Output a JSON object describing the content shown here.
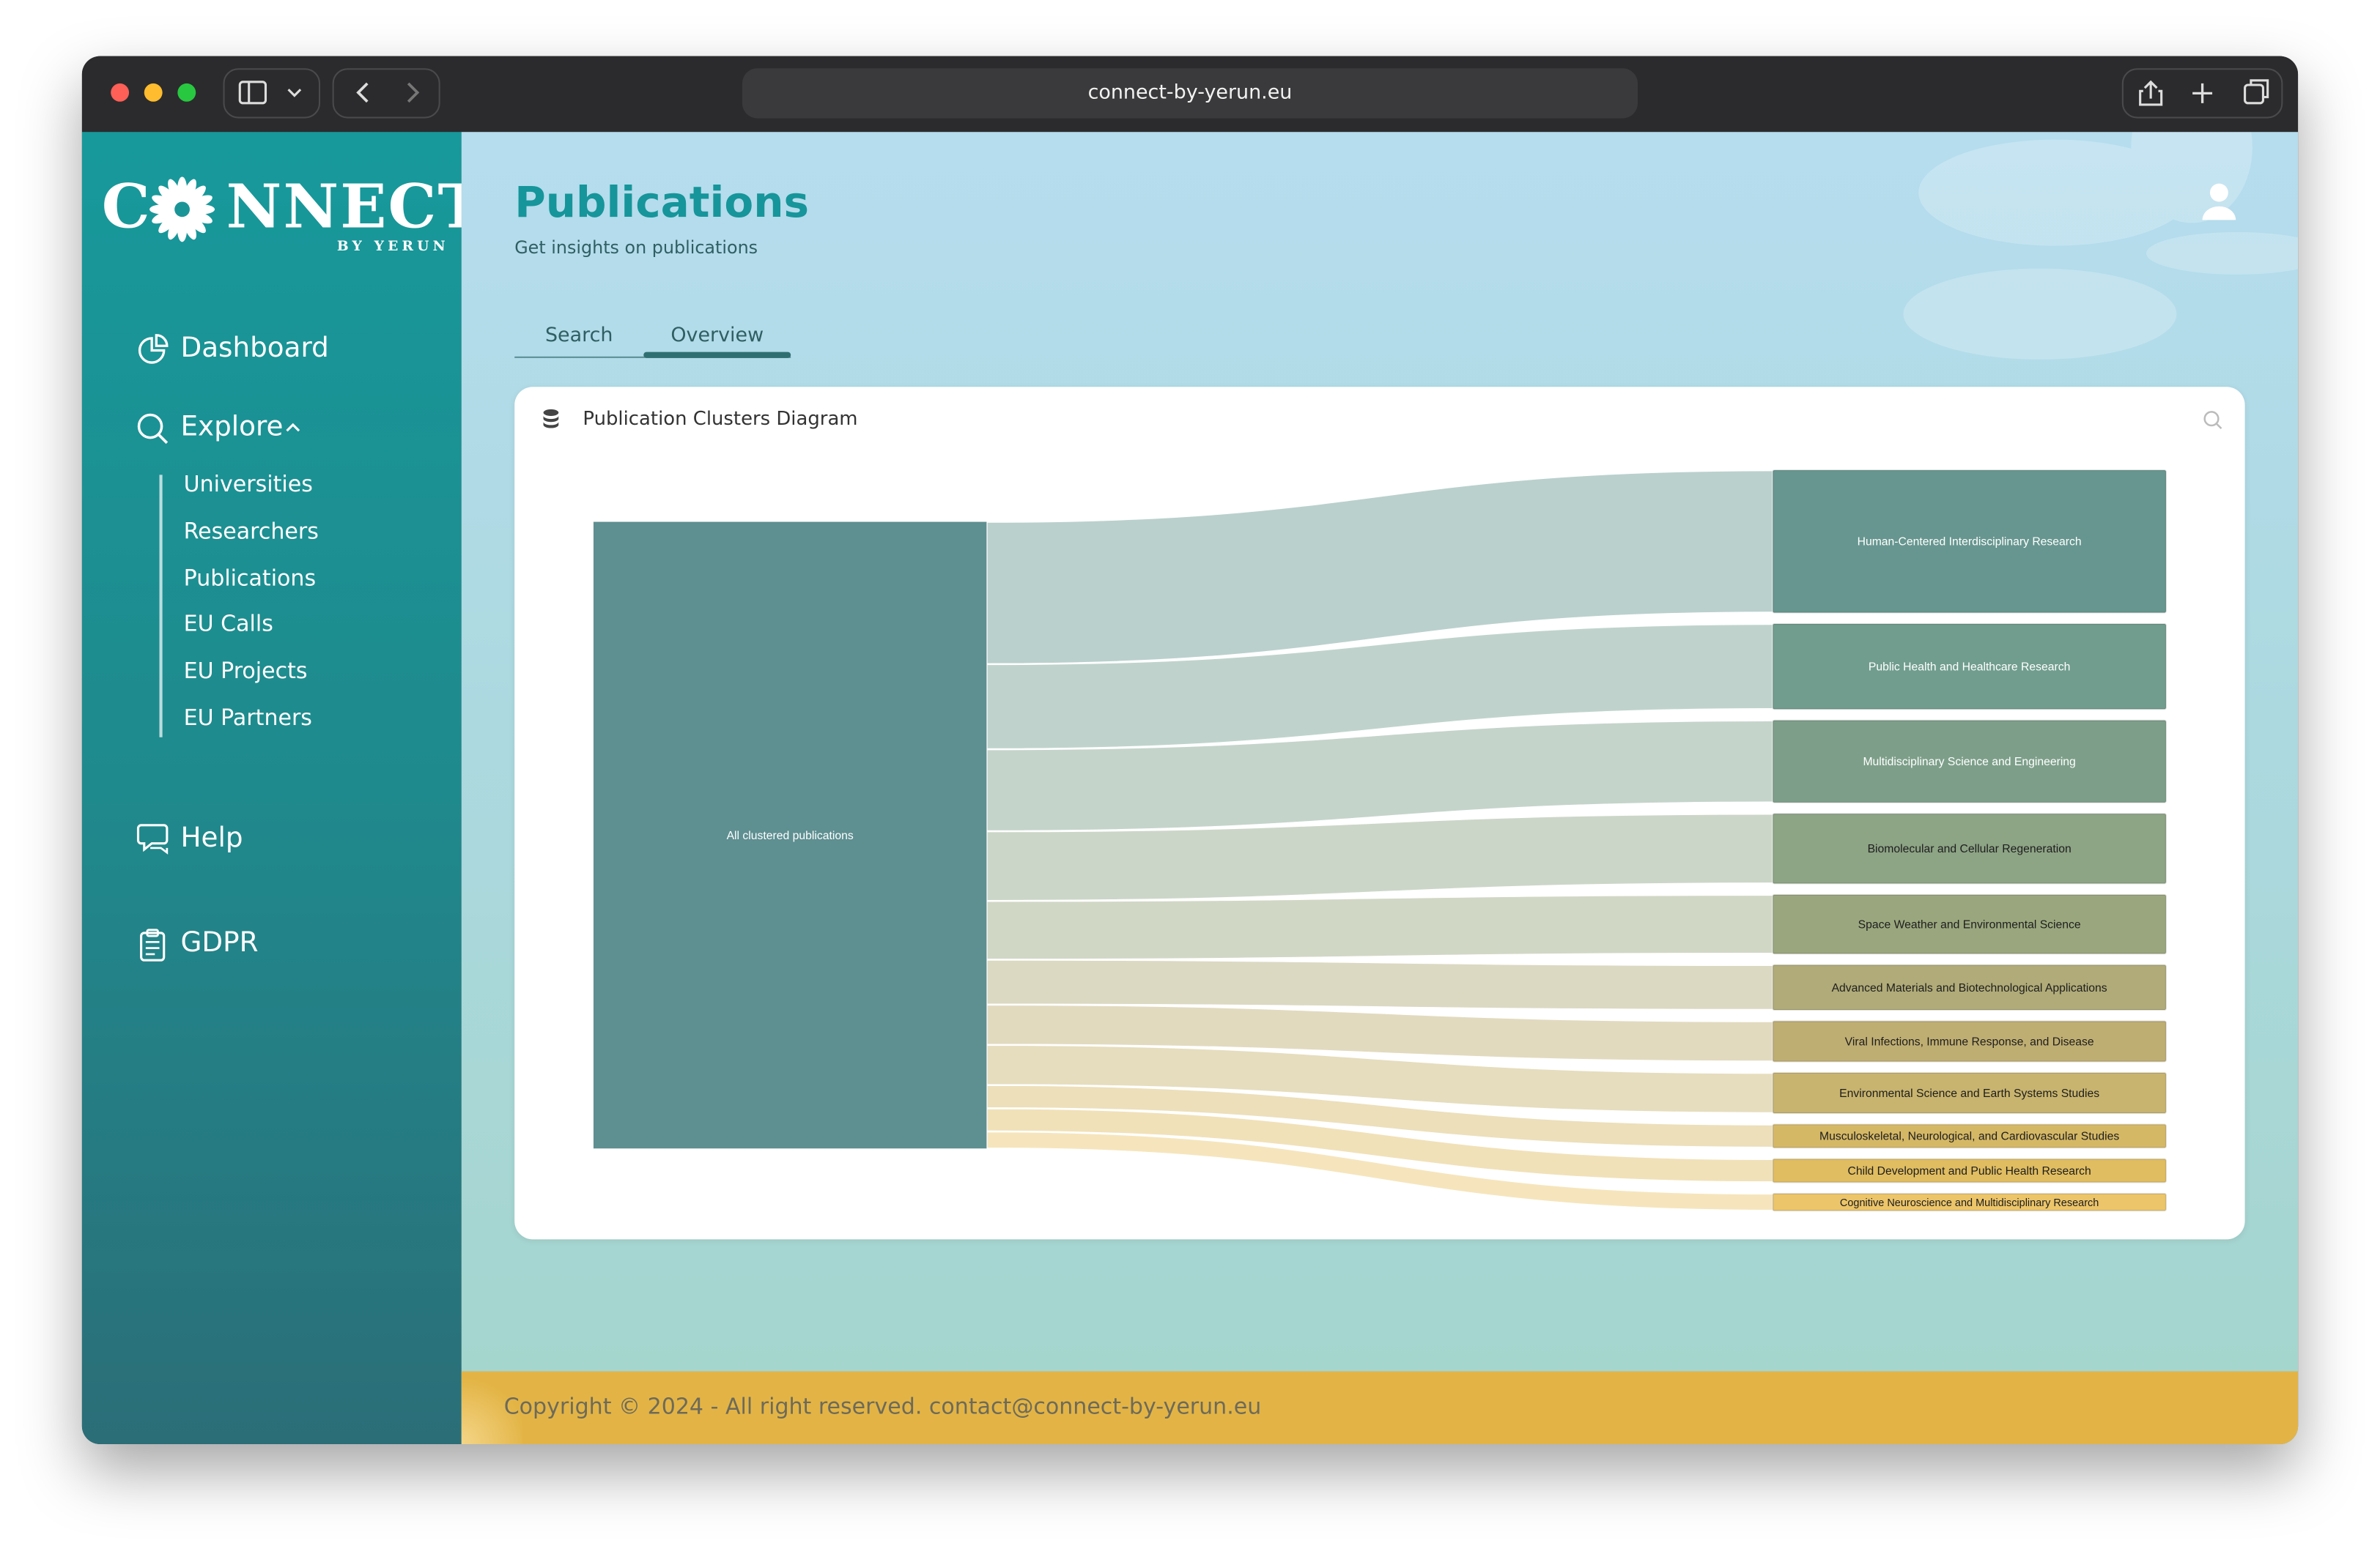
{
  "browser": {
    "url": "connect-by-yerun.eu"
  },
  "sidebar": {
    "logo_start": "C",
    "logo_end": "NNECT",
    "tagline": "BY YERUN",
    "nav": [
      "Dashboard",
      "Explore"
    ],
    "explore_items": [
      "Universities",
      "Researchers",
      "Publications",
      "EU Calls",
      "EU Projects",
      "EU Partners"
    ],
    "bottom_nav": [
      "Help",
      "GDPR"
    ]
  },
  "page": {
    "title": "Publications",
    "subtitle": "Get insights on publications",
    "tabs": [
      "Search",
      "Overview"
    ],
    "active_tab": 1
  },
  "card": {
    "title": "Publication Clusters Diagram",
    "diagram": {
      "source": "All clustered publications",
      "source_color": "#5e8f91",
      "clusters": [
        {
          "label": "Human-Centered Interdisciplinary Research",
          "value": 92,
          "color": "#66968f"
        },
        {
          "label": "Public Health and Healthcare Research",
          "value": 55,
          "color": "#709d8e"
        },
        {
          "label": "Multidisciplinary Science and Engineering",
          "value": 53,
          "color": "#7d9f89"
        },
        {
          "label": "Biomolecular and Cellular Regeneration",
          "value": 45,
          "color": "#8da485"
        },
        {
          "label": "Space Weather and Environmental Science",
          "value": 38,
          "color": "#9aa77e"
        },
        {
          "label": "Advanced Materials and Biotechnological Applications",
          "value": 29,
          "color": "#b0ab78"
        },
        {
          "label": "Viral Infections, Immune Response, and Disease",
          "value": 26,
          "color": "#bfae72"
        },
        {
          "label": "Environmental Science and Earth Systems Studies",
          "value": 26,
          "color": "#c8b46e"
        },
        {
          "label": "Musculoskeletal, Neurological, and Cardiovascular Studies",
          "value": 15,
          "color": "#d5b866"
        },
        {
          "label": "Child Development and Public Health Research",
          "value": 15,
          "color": "#e0bd61"
        },
        {
          "label": "Cognitive Neuroscience and Multidisciplinary Research",
          "value": 11,
          "color": "#ecc56a"
        }
      ]
    }
  },
  "footer": {
    "text": "Copyright © 2024 - All right reserved. contact@connect-by-yerun.eu"
  }
}
